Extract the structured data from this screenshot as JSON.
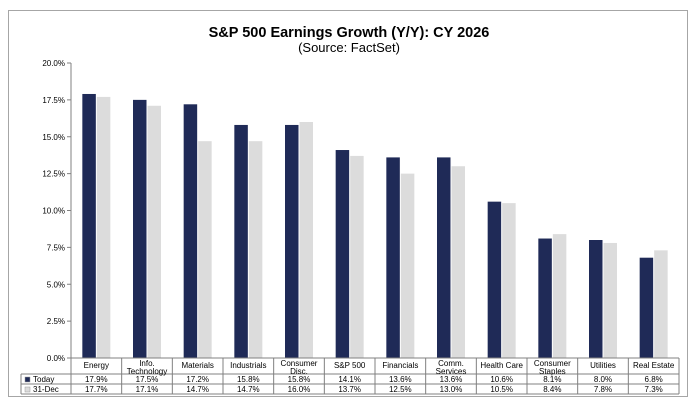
{
  "chart_data": {
    "type": "bar",
    "title": "S&P 500 Earnings Growth (Y/Y): CY 2026",
    "subtitle": "(Source: FactSet)",
    "categories": [
      [
        "Energy"
      ],
      [
        "Info.",
        "Technology"
      ],
      [
        "Materials"
      ],
      [
        "Industrials"
      ],
      [
        "Consumer",
        "Disc."
      ],
      [
        "S&P 500"
      ],
      [
        "Financials"
      ],
      [
        "Comm.",
        "Services"
      ],
      [
        "Health Care"
      ],
      [
        "Consumer",
        "Staples"
      ],
      [
        "Utilities"
      ],
      [
        "Real Estate"
      ]
    ],
    "series": [
      {
        "name": "Today",
        "color": "#1f2a57",
        "values": [
          17.9,
          17.5,
          17.2,
          15.8,
          15.8,
          14.1,
          13.6,
          13.6,
          10.6,
          8.1,
          8.0,
          6.8
        ],
        "labels": [
          "17.9%",
          "17.5%",
          "17.2%",
          "15.8%",
          "15.8%",
          "14.1%",
          "13.6%",
          "13.6%",
          "10.6%",
          "8.1%",
          "8.0%",
          "6.8%"
        ]
      },
      {
        "name": "31-Dec",
        "color": "#dcdcdc",
        "values": [
          17.7,
          17.1,
          14.7,
          14.7,
          16.0,
          13.7,
          12.5,
          13.0,
          10.5,
          8.4,
          7.8,
          7.3
        ],
        "labels": [
          "17.7%",
          "17.1%",
          "14.7%",
          "14.7%",
          "16.0%",
          "13.7%",
          "12.5%",
          "13.0%",
          "10.5%",
          "8.4%",
          "7.8%",
          "7.3%"
        ]
      }
    ],
    "ylim": [
      0,
      20
    ],
    "yticks": [
      "0.0%",
      "2.5%",
      "5.0%",
      "7.5%",
      "10.0%",
      "12.5%",
      "15.0%",
      "17.5%",
      "20.0%"
    ],
    "xlabel": "",
    "ylabel": "",
    "grid": false,
    "legend": "data-table-left"
  }
}
